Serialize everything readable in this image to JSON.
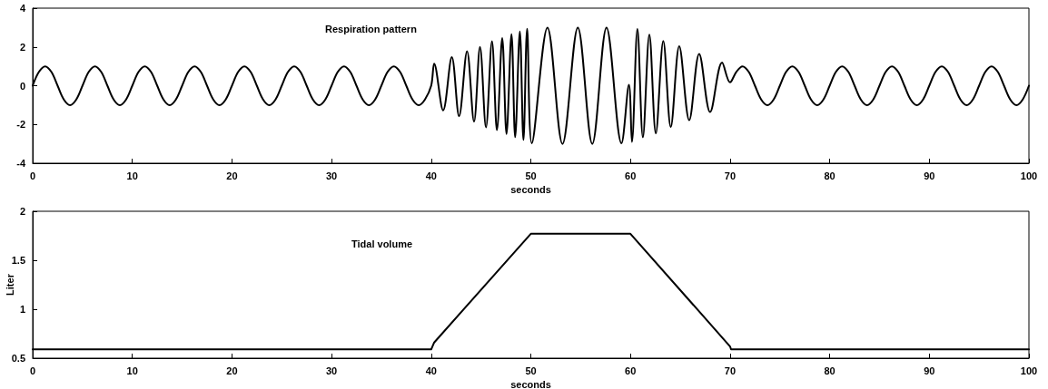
{
  "chart_data": [
    {
      "type": "line",
      "xlabel": "seconds",
      "annotations": [
        "Respiration pattern"
      ],
      "xlim": [
        0,
        100
      ],
      "ylim": [
        -4,
        4
      ],
      "xticks": [
        0,
        10,
        20,
        30,
        40,
        50,
        60,
        70,
        80,
        90,
        100
      ],
      "yticks": [
        -4,
        -2,
        0,
        2,
        4
      ],
      "grid": false,
      "legend": false,
      "marker": "none",
      "line_style": "solid",
      "series": [
        {
          "color": "#000000",
          "x": [
            0,
            0.625,
            1.25,
            1.875,
            2.5,
            3.125,
            3.75,
            4.375,
            5,
            5.625,
            6.25,
            6.875,
            7.5,
            8.125,
            8.75,
            9.375,
            10,
            10.625,
            11.25,
            11.875,
            12.5,
            13.125,
            13.75,
            14.375,
            15,
            15.625,
            16.25,
            16.875,
            17.5,
            18.125,
            18.75,
            19.375,
            20,
            20.625,
            21.25,
            21.875,
            22.5,
            23.125,
            23.75,
            24.375,
            25,
            25.625,
            26.25,
            26.875,
            27.5,
            28.125,
            28.75,
            29.375,
            30,
            30.625,
            31.25,
            31.875,
            32.5,
            33.125,
            33.75,
            34.375,
            35,
            35.625,
            36.25,
            36.875,
            37.5,
            38.125,
            38.75,
            39.375,
            40,
            40.3,
            41.2,
            42.07,
            42.8,
            43.6,
            44.3,
            44.9,
            45.5,
            46.1,
            46.6,
            47.13,
            47.56,
            48.06,
            48.43,
            48.9,
            49.26,
            49.63,
            50.1,
            51.67,
            53.18,
            54.72,
            56.17,
            57.6,
            59.1,
            59.85,
            60.15,
            60.7,
            61.25,
            61.9,
            62.55,
            63.3,
            64.05,
            64.9,
            65.9,
            66.9,
            68,
            69.2,
            70,
            70.625,
            71.25,
            71.875,
            72.5,
            73.125,
            73.75,
            74.375,
            75,
            75.625,
            76.25,
            76.875,
            77.5,
            78.125,
            78.75,
            79.375,
            80,
            80.625,
            81.25,
            81.875,
            82.5,
            83.125,
            83.75,
            84.375,
            85,
            85.625,
            86.25,
            86.875,
            87.5,
            88.125,
            88.75,
            89.375,
            90,
            90.625,
            91.25,
            91.875,
            92.5,
            93.125,
            93.75,
            94.375,
            95,
            95.625,
            96.25,
            96.875,
            97.5,
            98.125,
            98.75,
            99.375,
            100
          ],
          "values": [
            0,
            0.71,
            1,
            0.71,
            0,
            -0.71,
            -1,
            -0.71,
            0,
            0.71,
            1,
            0.71,
            0,
            -0.71,
            -1,
            -0.71,
            0,
            0.71,
            1,
            0.71,
            0,
            -0.71,
            -1,
            -0.71,
            0,
            0.71,
            1,
            0.71,
            0,
            -0.71,
            -1,
            -0.71,
            0,
            0.71,
            1,
            0.71,
            0,
            -0.71,
            -1,
            -0.71,
            0,
            0.71,
            1,
            0.71,
            0,
            -0.71,
            -1,
            -0.71,
            0,
            0.71,
            1,
            0.71,
            0,
            -0.71,
            -1,
            -0.71,
            0,
            0.71,
            1,
            0.71,
            0,
            -0.71,
            -1,
            -0.71,
            0,
            1.14,
            -1.27,
            1.47,
            -1.58,
            1.78,
            -1.86,
            2,
            -2.15,
            2.29,
            -2.29,
            2.46,
            -2.49,
            2.66,
            -2.66,
            2.8,
            -2.8,
            2.93,
            -2.97,
            3,
            -3,
            3,
            -3,
            3,
            -2.97,
            0.05,
            -2.9,
            2.92,
            -2.66,
            2.63,
            -2.46,
            2.3,
            -2.13,
            2.03,
            -1.78,
            1.64,
            -1.36,
            1.19,
            0.17,
            0.71,
            1,
            0.71,
            0,
            -0.71,
            -1,
            -0.71,
            0,
            0.71,
            1,
            0.71,
            0,
            -0.71,
            -1,
            -0.71,
            0,
            0.71,
            1,
            0.71,
            0,
            -0.71,
            -1,
            -0.71,
            0,
            0.71,
            1,
            0.71,
            0,
            -0.71,
            -1,
            -0.71,
            0,
            0.71,
            1,
            0.71,
            0,
            -0.71,
            -1,
            -0.71,
            0,
            0.71,
            1,
            0.71,
            0,
            -0.71,
            -1,
            -0.71,
            0
          ]
        }
      ]
    },
    {
      "type": "line",
      "xlabel": "seconds",
      "ylabel": "Liter",
      "annotations": [
        "Tidal volume"
      ],
      "xlim": [
        0,
        100
      ],
      "ylim": [
        0.5,
        2
      ],
      "xticks": [
        0,
        10,
        20,
        30,
        40,
        50,
        60,
        70,
        80,
        90,
        100
      ],
      "yticks": [
        0.5,
        1,
        1.5,
        2
      ],
      "grid": false,
      "legend": false,
      "marker": "none",
      "line_style": "solid",
      "series": [
        {
          "color": "#000000",
          "x": [
            0,
            40,
            40.3,
            50,
            60,
            70,
            70.1,
            100
          ],
          "values": [
            0.59,
            0.59,
            0.66,
            1.77,
            1.77,
            0.62,
            0.59,
            0.59
          ]
        }
      ]
    }
  ]
}
